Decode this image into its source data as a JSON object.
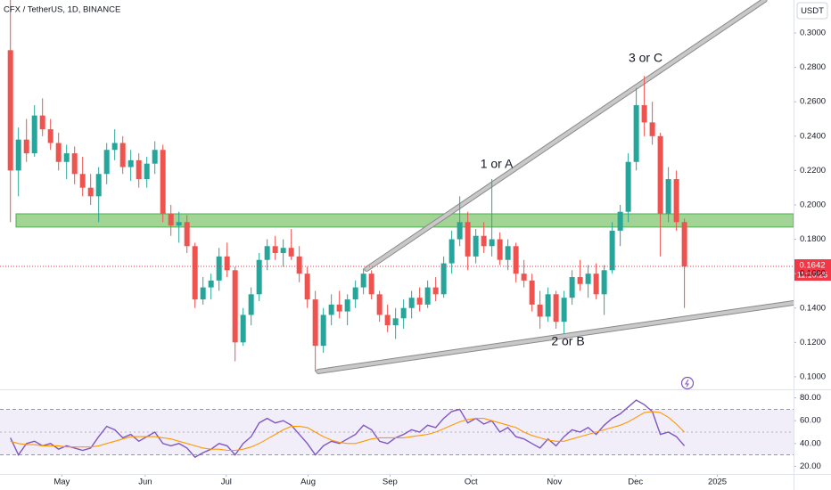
{
  "chart_data": [
    {
      "type": "candlestick",
      "title": "CFX / TetherUS, 1D, BINANCE",
      "currency": "USDT",
      "up_color": "#26a69a",
      "down_color": "#ef5350",
      "candles": [
        [
          0.29,
          0.32,
          0.19,
          0.22
        ],
        [
          0.22,
          0.245,
          0.205,
          0.238
        ],
        [
          0.238,
          0.25,
          0.225,
          0.23
        ],
        [
          0.23,
          0.258,
          0.228,
          0.252
        ],
        [
          0.252,
          0.262,
          0.24,
          0.244
        ],
        [
          0.244,
          0.25,
          0.232,
          0.236
        ],
        [
          0.236,
          0.242,
          0.22,
          0.225
        ],
        [
          0.225,
          0.235,
          0.215,
          0.23
        ],
        [
          0.23,
          0.234,
          0.212,
          0.218
        ],
        [
          0.218,
          0.228,
          0.205,
          0.21
        ],
        [
          0.21,
          0.218,
          0.2,
          0.205
        ],
        [
          0.205,
          0.222,
          0.19,
          0.218
        ],
        [
          0.218,
          0.236,
          0.212,
          0.232
        ],
        [
          0.232,
          0.244,
          0.226,
          0.236
        ],
        [
          0.236,
          0.24,
          0.218,
          0.222
        ],
        [
          0.222,
          0.232,
          0.214,
          0.226
        ],
        [
          0.226,
          0.23,
          0.21,
          0.215
        ],
        [
          0.215,
          0.228,
          0.21,
          0.224
        ],
        [
          0.224,
          0.237,
          0.218,
          0.232
        ],
        [
          0.232,
          0.235,
          0.19,
          0.195
        ],
        [
          0.195,
          0.2,
          0.182,
          0.188
        ],
        [
          0.188,
          0.196,
          0.178,
          0.19
        ],
        [
          0.19,
          0.194,
          0.172,
          0.176
        ],
        [
          0.176,
          0.178,
          0.14,
          0.145
        ],
        [
          0.145,
          0.158,
          0.142,
          0.152
        ],
        [
          0.152,
          0.16,
          0.145,
          0.156
        ],
        [
          0.156,
          0.175,
          0.15,
          0.17
        ],
        [
          0.17,
          0.178,
          0.158,
          0.162
        ],
        [
          0.162,
          0.164,
          0.109,
          0.12
        ],
        [
          0.12,
          0.14,
          0.118,
          0.136
        ],
        [
          0.136,
          0.152,
          0.13,
          0.148
        ],
        [
          0.148,
          0.172,
          0.144,
          0.168
        ],
        [
          0.168,
          0.18,
          0.162,
          0.176
        ],
        [
          0.176,
          0.182,
          0.168,
          0.172
        ],
        [
          0.172,
          0.18,
          0.164,
          0.175
        ],
        [
          0.175,
          0.186,
          0.168,
          0.17
        ],
        [
          0.17,
          0.176,
          0.155,
          0.16
        ],
        [
          0.16,
          0.164,
          0.14,
          0.145
        ],
        [
          0.145,
          0.15,
          0.103,
          0.118
        ],
        [
          0.118,
          0.14,
          0.114,
          0.136
        ],
        [
          0.136,
          0.148,
          0.13,
          0.142
        ],
        [
          0.142,
          0.15,
          0.134,
          0.138
        ],
        [
          0.138,
          0.148,
          0.13,
          0.145
        ],
        [
          0.145,
          0.156,
          0.14,
          0.152
        ],
        [
          0.152,
          0.163,
          0.148,
          0.16
        ],
        [
          0.16,
          0.162,
          0.145,
          0.148
        ],
        [
          0.148,
          0.15,
          0.132,
          0.136
        ],
        [
          0.136,
          0.142,
          0.126,
          0.13
        ],
        [
          0.13,
          0.14,
          0.122,
          0.134
        ],
        [
          0.134,
          0.145,
          0.128,
          0.14
        ],
        [
          0.14,
          0.15,
          0.134,
          0.146
        ],
        [
          0.146,
          0.152,
          0.138,
          0.142
        ],
        [
          0.142,
          0.156,
          0.14,
          0.152
        ],
        [
          0.152,
          0.158,
          0.144,
          0.148
        ],
        [
          0.148,
          0.17,
          0.146,
          0.166
        ],
        [
          0.166,
          0.185,
          0.16,
          0.18
        ],
        [
          0.18,
          0.205,
          0.176,
          0.19
        ],
        [
          0.19,
          0.196,
          0.162,
          0.17
        ],
        [
          0.17,
          0.186,
          0.166,
          0.182
        ],
        [
          0.182,
          0.19,
          0.172,
          0.176
        ],
        [
          0.176,
          0.215,
          0.17,
          0.18
        ],
        [
          0.18,
          0.184,
          0.165,
          0.168
        ],
        [
          0.168,
          0.18,
          0.162,
          0.176
        ],
        [
          0.176,
          0.178,
          0.155,
          0.16
        ],
        [
          0.16,
          0.168,
          0.152,
          0.156
        ],
        [
          0.156,
          0.16,
          0.138,
          0.142
        ],
        [
          0.142,
          0.15,
          0.128,
          0.135
        ],
        [
          0.135,
          0.152,
          0.132,
          0.148
        ],
        [
          0.148,
          0.15,
          0.128,
          0.132
        ],
        [
          0.132,
          0.15,
          0.125,
          0.146
        ],
        [
          0.146,
          0.162,
          0.142,
          0.158
        ],
        [
          0.158,
          0.168,
          0.15,
          0.154
        ],
        [
          0.154,
          0.165,
          0.146,
          0.16
        ],
        [
          0.16,
          0.166,
          0.145,
          0.148
        ],
        [
          0.148,
          0.165,
          0.136,
          0.162
        ],
        [
          0.162,
          0.19,
          0.16,
          0.185
        ],
        [
          0.185,
          0.2,
          0.176,
          0.196
        ],
        [
          0.196,
          0.23,
          0.19,
          0.225
        ],
        [
          0.225,
          0.268,
          0.22,
          0.258
        ],
        [
          0.258,
          0.275,
          0.24,
          0.248
        ],
        [
          0.248,
          0.26,
          0.235,
          0.24
        ],
        [
          0.24,
          0.242,
          0.17,
          0.195
        ],
        [
          0.195,
          0.222,
          0.19,
          0.215
        ],
        [
          0.215,
          0.22,
          0.185,
          0.19
        ],
        [
          0.19,
          0.192,
          0.14,
          0.1642
        ]
      ],
      "xlim": [
        -1.3,
        97.6
      ],
      "xticks": [
        {
          "value": 6.4,
          "label": "May"
        },
        {
          "value": 16.8,
          "label": "Jun"
        },
        {
          "value": 26.9,
          "label": "Jul"
        },
        {
          "value": 37.1,
          "label": "Aug"
        },
        {
          "value": 47.3,
          "label": "Sep"
        },
        {
          "value": 57.4,
          "label": "Oct"
        },
        {
          "value": 67.8,
          "label": "Nov"
        },
        {
          "value": 77.9,
          "label": "Dec"
        },
        {
          "value": 88.1,
          "label": "2025"
        }
      ],
      "ylim": [
        0.0927,
        0.3192
      ],
      "yticks": [
        {
          "value": 0.1,
          "label": "0.1000"
        },
        {
          "value": 0.12,
          "label": "0.1200"
        },
        {
          "value": 0.14,
          "label": "0.1400"
        },
        {
          "value": 0.16,
          "label": "0.1600"
        },
        {
          "value": 0.18,
          "label": "0.1800"
        },
        {
          "value": 0.2,
          "label": "0.2000"
        },
        {
          "value": 0.22,
          "label": "0.2200"
        },
        {
          "value": 0.24,
          "label": "0.2400"
        },
        {
          "value": 0.26,
          "label": "0.2600"
        },
        {
          "value": 0.28,
          "label": "0.2800"
        },
        {
          "value": 0.3,
          "label": "0.3000"
        }
      ],
      "last_price": {
        "value": 0.1642,
        "label": "0.1642"
      },
      "countdown": "11:10:25",
      "zone": {
        "low": 0.1871,
        "high": 0.1948,
        "from": 0.7,
        "to": 97.6,
        "color": "#8bc97a"
      },
      "trendlines": [
        {
          "x": [
            44.4,
            94
          ],
          "y": [
            0.1627,
            0.3192
          ]
        },
        {
          "x": [
            38.4,
            97.6
          ],
          "y": [
            0.1031,
            0.143
          ]
        }
      ],
      "annotations": [
        "1 or A",
        "3 or C",
        "2 or B"
      ]
    },
    {
      "type": "line",
      "series": [
        {
          "color": "#7e57c2",
          "values": [
            45,
            30,
            40,
            42,
            38,
            40,
            35,
            38,
            36,
            34,
            36,
            46,
            55,
            52,
            45,
            48,
            42,
            46,
            50,
            40,
            38,
            40,
            36,
            28,
            32,
            35,
            40,
            38,
            30,
            40,
            46,
            58,
            62,
            58,
            60,
            56,
            48,
            40,
            30,
            38,
            42,
            40,
            44,
            48,
            56,
            52,
            42,
            40,
            45,
            48,
            52,
            50,
            56,
            54,
            62,
            68,
            70,
            58,
            62,
            57,
            60,
            50,
            54,
            46,
            44,
            40,
            36,
            44,
            38,
            46,
            52,
            50,
            54,
            48,
            56,
            62,
            66,
            72,
            78,
            74,
            68,
            48,
            50,
            46,
            38
          ]
        },
        {
          "color": "#ff9800",
          "values": [
            42,
            40,
            39,
            39,
            38,
            38,
            38,
            37,
            37,
            37,
            37,
            38,
            40,
            42,
            44,
            46,
            46,
            46,
            46,
            45,
            44,
            42,
            40,
            38,
            36,
            35,
            35,
            34,
            34,
            35,
            37,
            40,
            44,
            48,
            52,
            55,
            55,
            54,
            50,
            46,
            43,
            41,
            40,
            40,
            42,
            44,
            45,
            45,
            45,
            45,
            46,
            47,
            48,
            50,
            53,
            56,
            59,
            61,
            62,
            62,
            60,
            58,
            56,
            54,
            50,
            47,
            45,
            43,
            42,
            42,
            44,
            46,
            48,
            50,
            52,
            54,
            56,
            59,
            63,
            67,
            68,
            67,
            63,
            57,
            50
          ]
        }
      ],
      "ylim": [
        14.1,
        85.9
      ],
      "yticks": [
        {
          "value": 80,
          "label": "80.00"
        },
        {
          "value": 60,
          "label": "60.00"
        },
        {
          "value": 40,
          "label": "40.00"
        },
        {
          "value": 20,
          "label": "20.00"
        }
      ],
      "band": [
        30,
        70
      ],
      "midline": 50
    }
  ]
}
